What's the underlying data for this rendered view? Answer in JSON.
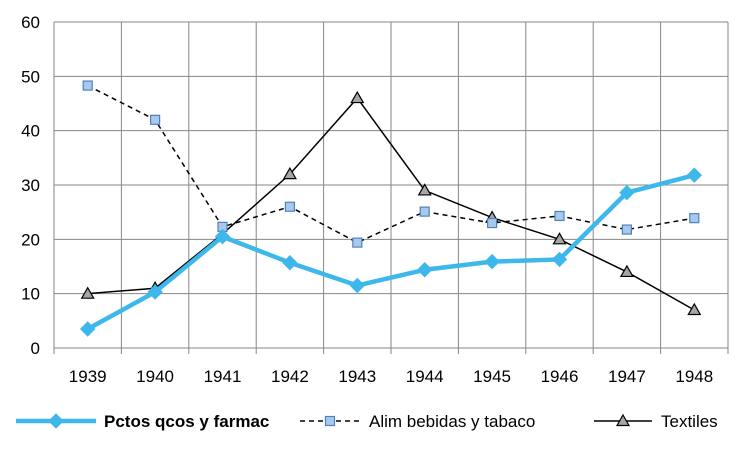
{
  "chart_data": {
    "type": "line",
    "categories": [
      "1939",
      "1940",
      "1941",
      "1942",
      "1943",
      "1944",
      "1945",
      "1946",
      "1947",
      "1948"
    ],
    "ylim": [
      0,
      60
    ],
    "yticks": [
      0,
      10,
      20,
      30,
      40,
      50,
      60
    ],
    "grid": true,
    "legend_position": "bottom",
    "series": [
      {
        "name": "Pctos qcos y farmac",
        "values": [
          3.5,
          10.3,
          20.5,
          15.7,
          11.5,
          14.4,
          15.9,
          16.3,
          28.6,
          31.8
        ],
        "color": "#3eb8ea",
        "marker": "diamond",
        "line_style": "solid-thick"
      },
      {
        "name": "Alim bebidas y tabaco",
        "values": [
          48.3,
          42.0,
          22.3,
          26.0,
          19.4,
          25.1,
          23.0,
          24.3,
          21.8,
          23.9
        ],
        "color": "#000000",
        "marker": "square",
        "marker_fill": "#a9c8ee",
        "line_style": "dashed"
      },
      {
        "name": "Textiles",
        "values": [
          10.0,
          11.0,
          21.0,
          32.0,
          46.0,
          29.0,
          24.0,
          20.0,
          14.0,
          7.0
        ],
        "color": "#000000",
        "marker": "triangle",
        "marker_fill": "#a6a6a6",
        "line_style": "solid"
      }
    ]
  }
}
